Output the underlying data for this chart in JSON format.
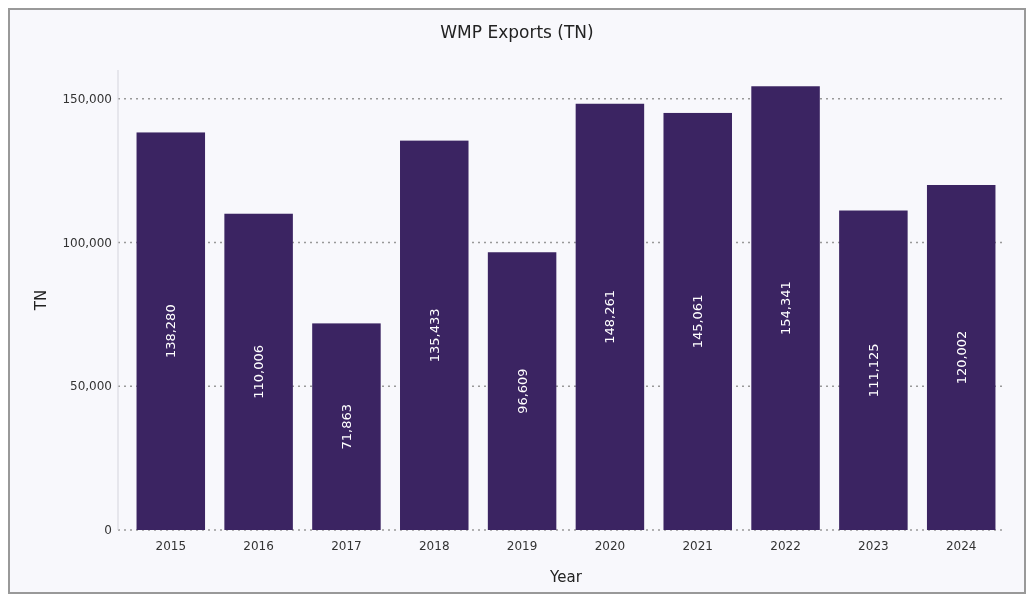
{
  "chart_data": {
    "type": "bar",
    "title": "WMP Exports (TN)",
    "xlabel": "Year",
    "ylabel": "TN",
    "categories": [
      "2015",
      "2016",
      "2017",
      "2018",
      "2019",
      "2020",
      "2021",
      "2022",
      "2023",
      "2024"
    ],
    "values": [
      138280,
      110006,
      71863,
      135433,
      96609,
      148261,
      145061,
      154341,
      111125,
      120002
    ],
    "value_labels": [
      "138,280",
      "110,006",
      "71,863",
      "135,433",
      "96,609",
      "148,261",
      "145,061",
      "154,341",
      "111,125",
      "120,002"
    ],
    "color": "#3b2462",
    "ylim": [
      0,
      160000
    ],
    "yticks": [
      0,
      {
        "value": 50000,
        "label": "50,000"
      },
      {
        "value": 100000,
        "label": "100,000"
      },
      {
        "value": 150000,
        "label": "150,000"
      }
    ],
    "grid": "y"
  }
}
